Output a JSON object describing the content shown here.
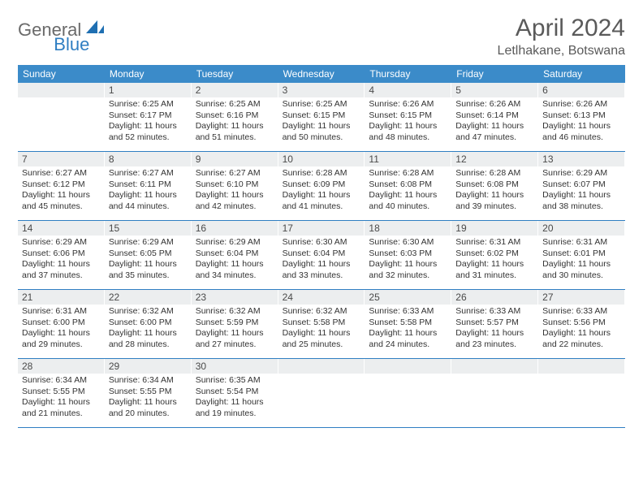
{
  "logo": {
    "part1": "General",
    "part2": "Blue"
  },
  "header": {
    "title": "April 2024",
    "location": "Letlhakane, Botswana"
  },
  "colors": {
    "header_bg": "#3b8bc9",
    "accent": "#2f7ec2",
    "daynum_bg": "#eceeef",
    "text": "#333333",
    "logo_gray": "#6a6a6a"
  },
  "daysOfWeek": [
    "Sunday",
    "Monday",
    "Tuesday",
    "Wednesday",
    "Thursday",
    "Friday",
    "Saturday"
  ],
  "weeks": [
    [
      {
        "day": "",
        "sunrise": "",
        "sunset": "",
        "daylight": ""
      },
      {
        "day": "1",
        "sunrise": "Sunrise: 6:25 AM",
        "sunset": "Sunset: 6:17 PM",
        "daylight": "Daylight: 11 hours and 52 minutes."
      },
      {
        "day": "2",
        "sunrise": "Sunrise: 6:25 AM",
        "sunset": "Sunset: 6:16 PM",
        "daylight": "Daylight: 11 hours and 51 minutes."
      },
      {
        "day": "3",
        "sunrise": "Sunrise: 6:25 AM",
        "sunset": "Sunset: 6:15 PM",
        "daylight": "Daylight: 11 hours and 50 minutes."
      },
      {
        "day": "4",
        "sunrise": "Sunrise: 6:26 AM",
        "sunset": "Sunset: 6:15 PM",
        "daylight": "Daylight: 11 hours and 48 minutes."
      },
      {
        "day": "5",
        "sunrise": "Sunrise: 6:26 AM",
        "sunset": "Sunset: 6:14 PM",
        "daylight": "Daylight: 11 hours and 47 minutes."
      },
      {
        "day": "6",
        "sunrise": "Sunrise: 6:26 AM",
        "sunset": "Sunset: 6:13 PM",
        "daylight": "Daylight: 11 hours and 46 minutes."
      }
    ],
    [
      {
        "day": "7",
        "sunrise": "Sunrise: 6:27 AM",
        "sunset": "Sunset: 6:12 PM",
        "daylight": "Daylight: 11 hours and 45 minutes."
      },
      {
        "day": "8",
        "sunrise": "Sunrise: 6:27 AM",
        "sunset": "Sunset: 6:11 PM",
        "daylight": "Daylight: 11 hours and 44 minutes."
      },
      {
        "day": "9",
        "sunrise": "Sunrise: 6:27 AM",
        "sunset": "Sunset: 6:10 PM",
        "daylight": "Daylight: 11 hours and 42 minutes."
      },
      {
        "day": "10",
        "sunrise": "Sunrise: 6:28 AM",
        "sunset": "Sunset: 6:09 PM",
        "daylight": "Daylight: 11 hours and 41 minutes."
      },
      {
        "day": "11",
        "sunrise": "Sunrise: 6:28 AM",
        "sunset": "Sunset: 6:08 PM",
        "daylight": "Daylight: 11 hours and 40 minutes."
      },
      {
        "day": "12",
        "sunrise": "Sunrise: 6:28 AM",
        "sunset": "Sunset: 6:08 PM",
        "daylight": "Daylight: 11 hours and 39 minutes."
      },
      {
        "day": "13",
        "sunrise": "Sunrise: 6:29 AM",
        "sunset": "Sunset: 6:07 PM",
        "daylight": "Daylight: 11 hours and 38 minutes."
      }
    ],
    [
      {
        "day": "14",
        "sunrise": "Sunrise: 6:29 AM",
        "sunset": "Sunset: 6:06 PM",
        "daylight": "Daylight: 11 hours and 37 minutes."
      },
      {
        "day": "15",
        "sunrise": "Sunrise: 6:29 AM",
        "sunset": "Sunset: 6:05 PM",
        "daylight": "Daylight: 11 hours and 35 minutes."
      },
      {
        "day": "16",
        "sunrise": "Sunrise: 6:29 AM",
        "sunset": "Sunset: 6:04 PM",
        "daylight": "Daylight: 11 hours and 34 minutes."
      },
      {
        "day": "17",
        "sunrise": "Sunrise: 6:30 AM",
        "sunset": "Sunset: 6:04 PM",
        "daylight": "Daylight: 11 hours and 33 minutes."
      },
      {
        "day": "18",
        "sunrise": "Sunrise: 6:30 AM",
        "sunset": "Sunset: 6:03 PM",
        "daylight": "Daylight: 11 hours and 32 minutes."
      },
      {
        "day": "19",
        "sunrise": "Sunrise: 6:31 AM",
        "sunset": "Sunset: 6:02 PM",
        "daylight": "Daylight: 11 hours and 31 minutes."
      },
      {
        "day": "20",
        "sunrise": "Sunrise: 6:31 AM",
        "sunset": "Sunset: 6:01 PM",
        "daylight": "Daylight: 11 hours and 30 minutes."
      }
    ],
    [
      {
        "day": "21",
        "sunrise": "Sunrise: 6:31 AM",
        "sunset": "Sunset: 6:00 PM",
        "daylight": "Daylight: 11 hours and 29 minutes."
      },
      {
        "day": "22",
        "sunrise": "Sunrise: 6:32 AM",
        "sunset": "Sunset: 6:00 PM",
        "daylight": "Daylight: 11 hours and 28 minutes."
      },
      {
        "day": "23",
        "sunrise": "Sunrise: 6:32 AM",
        "sunset": "Sunset: 5:59 PM",
        "daylight": "Daylight: 11 hours and 27 minutes."
      },
      {
        "day": "24",
        "sunrise": "Sunrise: 6:32 AM",
        "sunset": "Sunset: 5:58 PM",
        "daylight": "Daylight: 11 hours and 25 minutes."
      },
      {
        "day": "25",
        "sunrise": "Sunrise: 6:33 AM",
        "sunset": "Sunset: 5:58 PM",
        "daylight": "Daylight: 11 hours and 24 minutes."
      },
      {
        "day": "26",
        "sunrise": "Sunrise: 6:33 AM",
        "sunset": "Sunset: 5:57 PM",
        "daylight": "Daylight: 11 hours and 23 minutes."
      },
      {
        "day": "27",
        "sunrise": "Sunrise: 6:33 AM",
        "sunset": "Sunset: 5:56 PM",
        "daylight": "Daylight: 11 hours and 22 minutes."
      }
    ],
    [
      {
        "day": "28",
        "sunrise": "Sunrise: 6:34 AM",
        "sunset": "Sunset: 5:55 PM",
        "daylight": "Daylight: 11 hours and 21 minutes."
      },
      {
        "day": "29",
        "sunrise": "Sunrise: 6:34 AM",
        "sunset": "Sunset: 5:55 PM",
        "daylight": "Daylight: 11 hours and 20 minutes."
      },
      {
        "day": "30",
        "sunrise": "Sunrise: 6:35 AM",
        "sunset": "Sunset: 5:54 PM",
        "daylight": "Daylight: 11 hours and 19 minutes."
      },
      {
        "day": "",
        "sunrise": "",
        "sunset": "",
        "daylight": ""
      },
      {
        "day": "",
        "sunrise": "",
        "sunset": "",
        "daylight": ""
      },
      {
        "day": "",
        "sunrise": "",
        "sunset": "",
        "daylight": ""
      },
      {
        "day": "",
        "sunrise": "",
        "sunset": "",
        "daylight": ""
      }
    ]
  ]
}
